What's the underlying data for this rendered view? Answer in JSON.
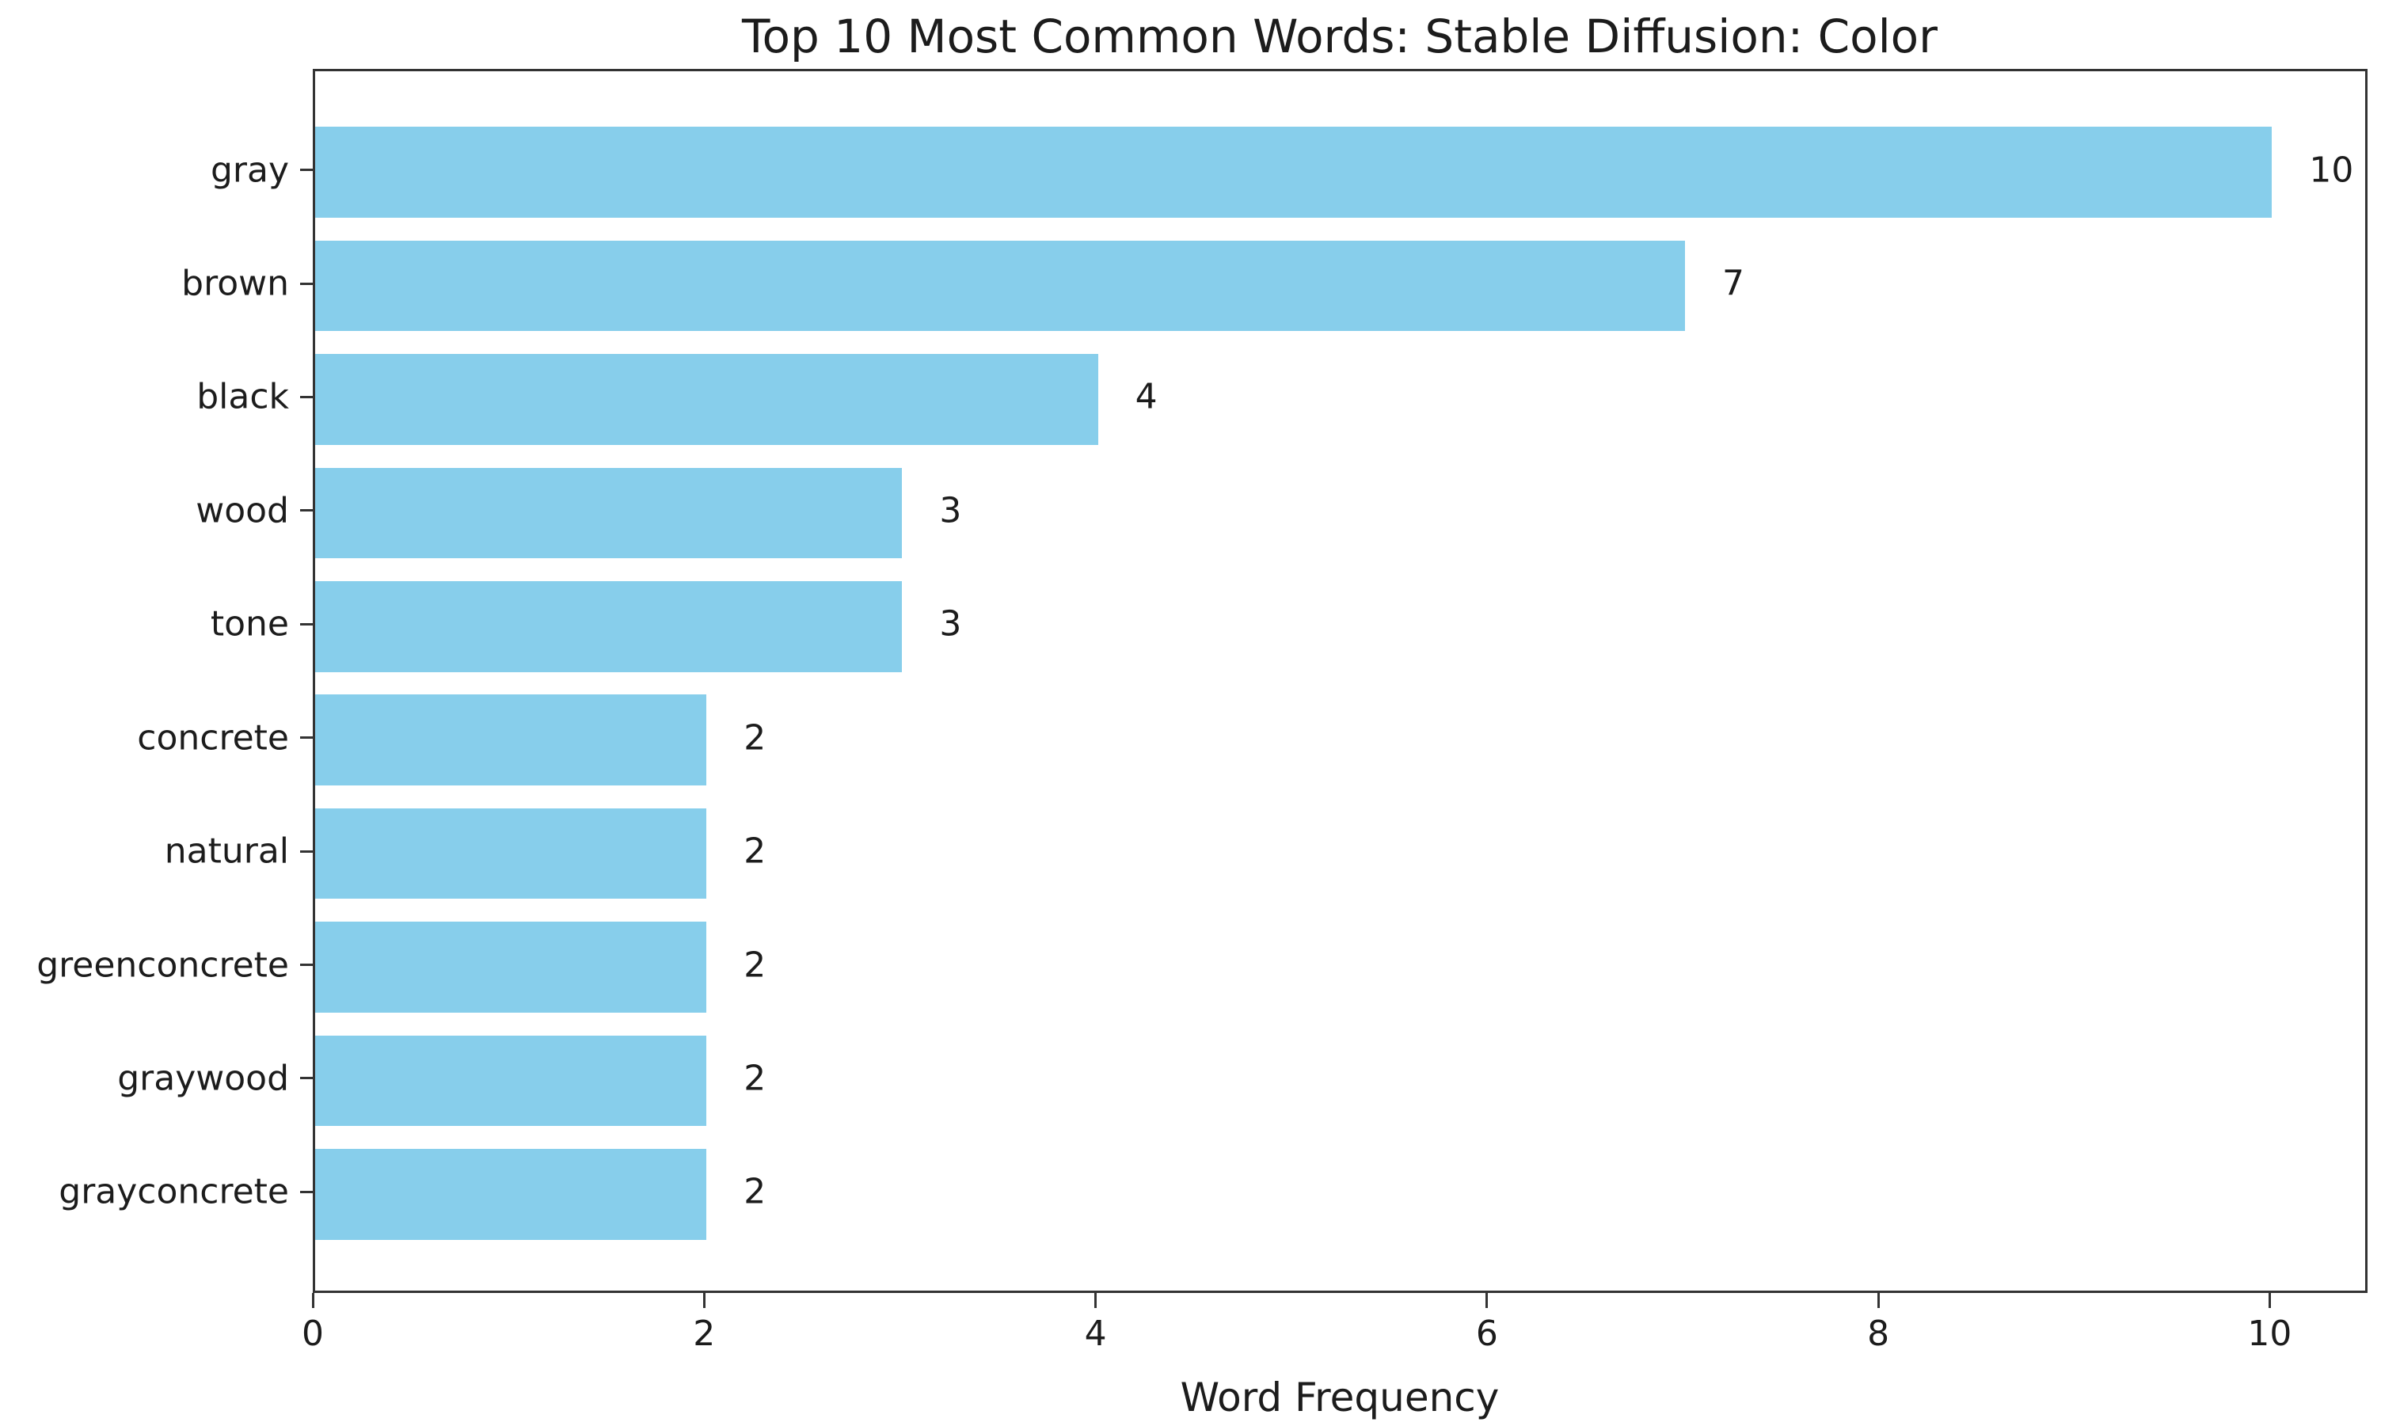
{
  "chart_data": {
    "type": "bar",
    "orientation": "horizontal",
    "title": "Top 10 Most Common Words: Stable Diffusion: Color",
    "xlabel": "Word Frequency",
    "ylabel": "",
    "categories": [
      "gray",
      "brown",
      "black",
      "wood",
      "tone",
      "concrete",
      "natural",
      "greenconcrete",
      "graywood",
      "grayconcrete"
    ],
    "values": [
      10,
      7,
      4,
      3,
      3,
      2,
      2,
      2,
      2,
      2
    ],
    "value_labels": [
      "10",
      "7",
      "4",
      "3",
      "3",
      "2",
      "2",
      "2",
      "2",
      "2"
    ],
    "x_ticks": [
      0,
      2,
      4,
      6,
      8,
      10
    ],
    "xlim": [
      0,
      10.5
    ],
    "grid": false,
    "legend": null,
    "colors": {
      "bar": "#87CEEB",
      "spine": "#333333",
      "text": "#1c1c1c",
      "background": "#ffffff"
    }
  }
}
